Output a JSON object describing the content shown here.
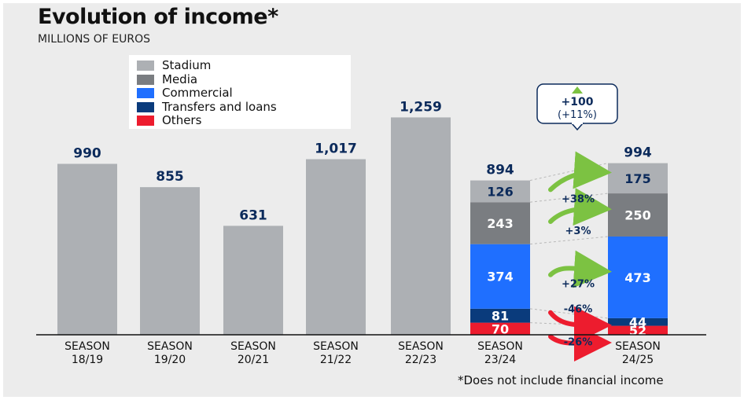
{
  "title": "Evolution of income*",
  "subtitle": "MILLIONS OF EUROS",
  "footnote": "*Does not include financial income",
  "colors": {
    "stadium": "#adb0b4",
    "media": "#7a7d81",
    "commercial": "#1f6fff",
    "transfers": "#0a3b7c",
    "others": "#ed1c2e",
    "total_label": "#0b2a5b",
    "growth_arrow": "#7cc242",
    "decline_arrow": "#ed1c2e",
    "background": "#ececec"
  },
  "legend": [
    {
      "key": "stadium",
      "label": "Stadium"
    },
    {
      "key": "media",
      "label": "Media"
    },
    {
      "key": "commercial",
      "label": "Commercial"
    },
    {
      "key": "transfers",
      "label": "Transfers and loans"
    },
    {
      "key": "others",
      "label": "Others"
    }
  ],
  "callout": {
    "line1": "+100",
    "line2": "(+11%)"
  },
  "chart_data": {
    "type": "bar",
    "title": "Evolution of income*",
    "ylabel": "MILLIONS OF EUROS",
    "ylim": [
      0,
      1300
    ],
    "categories": [
      "SEASON 18/19",
      "SEASON 19/20",
      "SEASON 20/21",
      "SEASON 21/22",
      "SEASON 22/23",
      "SEASON 23/24",
      "SEASON 24/25"
    ],
    "category_lines": [
      [
        "SEASON",
        "18/19"
      ],
      [
        "SEASON",
        "19/20"
      ],
      [
        "SEASON",
        "20/21"
      ],
      [
        "SEASON",
        "21/22"
      ],
      [
        "SEASON",
        "22/23"
      ],
      [
        "SEASON",
        "23/24"
      ],
      [
        "SEASON",
        "24/25"
      ]
    ],
    "totals": [
      "990",
      "855",
      "631",
      "1,017",
      "1,259",
      "894",
      "994"
    ],
    "total_values": [
      990,
      855,
      631,
      1017,
      1259,
      894,
      994
    ],
    "stacked": [
      {
        "category": "SEASON 23/24",
        "segments": {
          "others": 70,
          "transfers": 81,
          "commercial": 374,
          "media": 243,
          "stadium": 126
        }
      },
      {
        "category": "SEASON 24/25",
        "segments": {
          "others": 52,
          "transfers": 44,
          "commercial": 473,
          "media": 250,
          "stadium": 175
        }
      }
    ],
    "changes": [
      {
        "key": "stadium",
        "label": "+38%",
        "direction": "up"
      },
      {
        "key": "media",
        "label": "+3%",
        "direction": "up"
      },
      {
        "key": "commercial",
        "label": "+27%",
        "direction": "up"
      },
      {
        "key": "transfers",
        "label": "-46%",
        "direction": "down"
      },
      {
        "key": "others",
        "label": "-26%",
        "direction": "down"
      }
    ]
  }
}
